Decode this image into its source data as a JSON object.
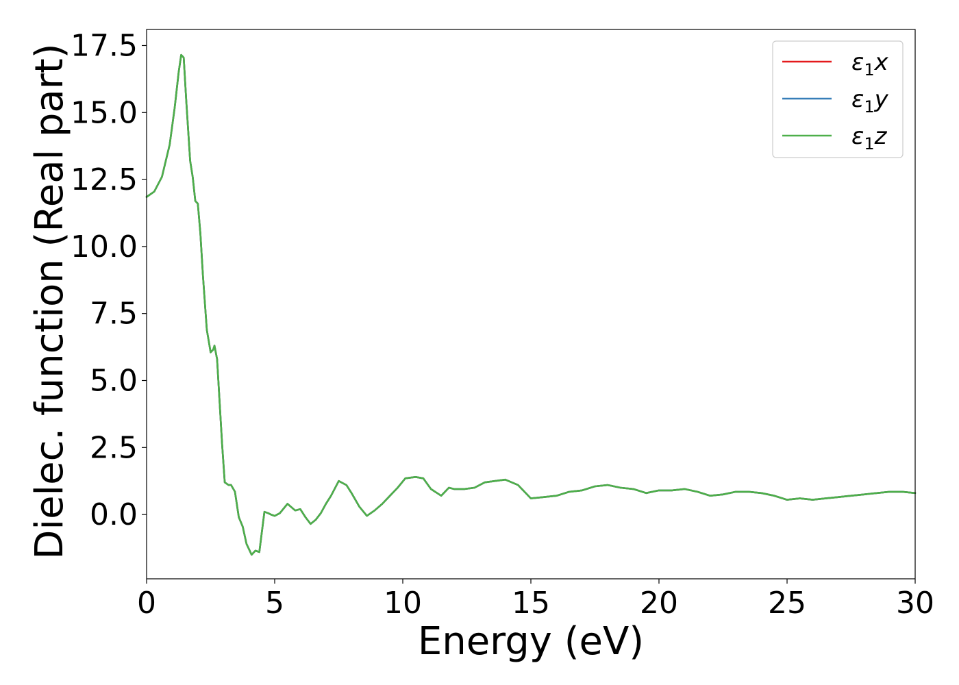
{
  "chart_data": {
    "type": "line",
    "title": "",
    "xlabel": "Energy (eV)",
    "ylabel": "Dielec. function (Real part)",
    "xlim": [
      0,
      30
    ],
    "ylim": [
      -2.4,
      18.1
    ],
    "xticks": [
      0,
      5,
      10,
      15,
      20,
      25,
      30
    ],
    "xtick_labels": [
      "0",
      "5",
      "10",
      "15",
      "20",
      "25",
      "30"
    ],
    "yticks": [
      0.0,
      2.5,
      5.0,
      7.5,
      10.0,
      12.5,
      15.0,
      17.5
    ],
    "ytick_labels": [
      "0.0",
      "2.5",
      "5.0",
      "7.5",
      "10.0",
      "12.5",
      "15.0",
      "17.5"
    ],
    "grid": false,
    "legend_position": "top-right",
    "x": [
      0.0,
      0.3,
      0.6,
      0.9,
      1.1,
      1.25,
      1.35,
      1.45,
      1.55,
      1.7,
      1.8,
      1.9,
      2.0,
      2.1,
      2.2,
      2.35,
      2.5,
      2.6,
      2.65,
      2.75,
      2.85,
      2.95,
      3.05,
      3.2,
      3.3,
      3.45,
      3.6,
      3.75,
      3.9,
      4.1,
      4.25,
      4.4,
      4.6,
      4.75,
      4.85,
      5.0,
      5.2,
      5.5,
      5.8,
      6.0,
      6.2,
      6.4,
      6.6,
      6.8,
      7.0,
      7.2,
      7.5,
      7.8,
      8.0,
      8.3,
      8.6,
      8.9,
      9.2,
      9.5,
      9.8,
      10.1,
      10.5,
      10.8,
      11.1,
      11.5,
      11.8,
      12.0,
      12.4,
      12.8,
      13.2,
      13.6,
      14.0,
      14.5,
      15.0,
      15.5,
      16.0,
      16.5,
      17.0,
      17.5,
      18.0,
      18.5,
      19.0,
      19.5,
      20.0,
      20.5,
      21.0,
      21.5,
      22.0,
      22.5,
      23.0,
      23.5,
      24.0,
      24.5,
      25.0,
      25.5,
      26.0,
      26.5,
      27.0,
      27.5,
      28.0,
      28.5,
      29.0,
      29.5,
      30.0
    ],
    "series": [
      {
        "name": "ε1x",
        "color": "#e41a1c",
        "values": [
          11.85,
          12.05,
          12.6,
          13.8,
          15.2,
          16.5,
          17.15,
          17.05,
          15.4,
          13.2,
          12.6,
          11.7,
          11.6,
          10.5,
          8.9,
          6.9,
          6.05,
          6.15,
          6.3,
          5.8,
          4.2,
          2.6,
          1.2,
          1.1,
          1.1,
          0.85,
          -0.1,
          -0.45,
          -1.1,
          -1.5,
          -1.35,
          -1.4,
          0.1,
          0.05,
          0.0,
          -0.05,
          0.05,
          0.4,
          0.15,
          0.2,
          -0.1,
          -0.35,
          -0.2,
          0.05,
          0.4,
          0.7,
          1.25,
          1.1,
          0.8,
          0.3,
          -0.05,
          0.15,
          0.4,
          0.7,
          1.0,
          1.35,
          1.4,
          1.35,
          0.95,
          0.7,
          1.0,
          0.95,
          0.95,
          1.0,
          1.2,
          1.25,
          1.3,
          1.1,
          0.6,
          0.65,
          0.7,
          0.85,
          0.9,
          1.05,
          1.1,
          1.0,
          0.95,
          0.8,
          0.9,
          0.9,
          0.95,
          0.85,
          0.7,
          0.75,
          0.85,
          0.85,
          0.8,
          0.7,
          0.55,
          0.6,
          0.55,
          0.6,
          0.65,
          0.7,
          0.75,
          0.8,
          0.85,
          0.85,
          0.8
        ]
      },
      {
        "name": "ε1y",
        "color": "#377eb8",
        "values": [
          11.85,
          12.05,
          12.6,
          13.8,
          15.2,
          16.5,
          17.15,
          17.05,
          15.4,
          13.2,
          12.6,
          11.7,
          11.6,
          10.5,
          8.9,
          6.9,
          6.05,
          6.15,
          6.3,
          5.8,
          4.2,
          2.6,
          1.2,
          1.1,
          1.1,
          0.85,
          -0.1,
          -0.45,
          -1.1,
          -1.5,
          -1.35,
          -1.4,
          0.1,
          0.05,
          0.0,
          -0.05,
          0.05,
          0.4,
          0.15,
          0.2,
          -0.1,
          -0.35,
          -0.2,
          0.05,
          0.4,
          0.7,
          1.25,
          1.1,
          0.8,
          0.3,
          -0.05,
          0.15,
          0.4,
          0.7,
          1.0,
          1.35,
          1.4,
          1.35,
          0.95,
          0.7,
          1.0,
          0.95,
          0.95,
          1.0,
          1.2,
          1.25,
          1.3,
          1.1,
          0.6,
          0.65,
          0.7,
          0.85,
          0.9,
          1.05,
          1.1,
          1.0,
          0.95,
          0.8,
          0.9,
          0.9,
          0.95,
          0.85,
          0.7,
          0.75,
          0.85,
          0.85,
          0.8,
          0.7,
          0.55,
          0.6,
          0.55,
          0.6,
          0.65,
          0.7,
          0.75,
          0.8,
          0.85,
          0.85,
          0.8
        ]
      },
      {
        "name": "ε1z",
        "color": "#4daf4a",
        "values": [
          11.85,
          12.05,
          12.6,
          13.8,
          15.2,
          16.5,
          17.15,
          17.05,
          15.4,
          13.2,
          12.6,
          11.7,
          11.6,
          10.5,
          8.9,
          6.9,
          6.05,
          6.15,
          6.3,
          5.8,
          4.2,
          2.6,
          1.2,
          1.1,
          1.1,
          0.85,
          -0.1,
          -0.45,
          -1.1,
          -1.5,
          -1.35,
          -1.4,
          0.1,
          0.05,
          0.0,
          -0.05,
          0.05,
          0.4,
          0.15,
          0.2,
          -0.1,
          -0.35,
          -0.2,
          0.05,
          0.4,
          0.7,
          1.25,
          1.1,
          0.8,
          0.3,
          -0.05,
          0.15,
          0.4,
          0.7,
          1.0,
          1.35,
          1.4,
          1.35,
          0.95,
          0.7,
          1.0,
          0.95,
          0.95,
          1.0,
          1.2,
          1.25,
          1.3,
          1.1,
          0.6,
          0.65,
          0.7,
          0.85,
          0.9,
          1.05,
          1.1,
          1.0,
          0.95,
          0.8,
          0.9,
          0.9,
          0.95,
          0.85,
          0.7,
          0.75,
          0.85,
          0.85,
          0.8,
          0.7,
          0.55,
          0.6,
          0.55,
          0.6,
          0.65,
          0.7,
          0.75,
          0.8,
          0.85,
          0.85,
          0.8
        ]
      }
    ],
    "legend": [
      {
        "symbol": "ε",
        "sub": "1",
        "var": "x",
        "color": "#e41a1c"
      },
      {
        "symbol": "ε",
        "sub": "1",
        "var": "y",
        "color": "#377eb8"
      },
      {
        "symbol": "ε",
        "sub": "1",
        "var": "z",
        "color": "#4daf4a"
      }
    ]
  }
}
